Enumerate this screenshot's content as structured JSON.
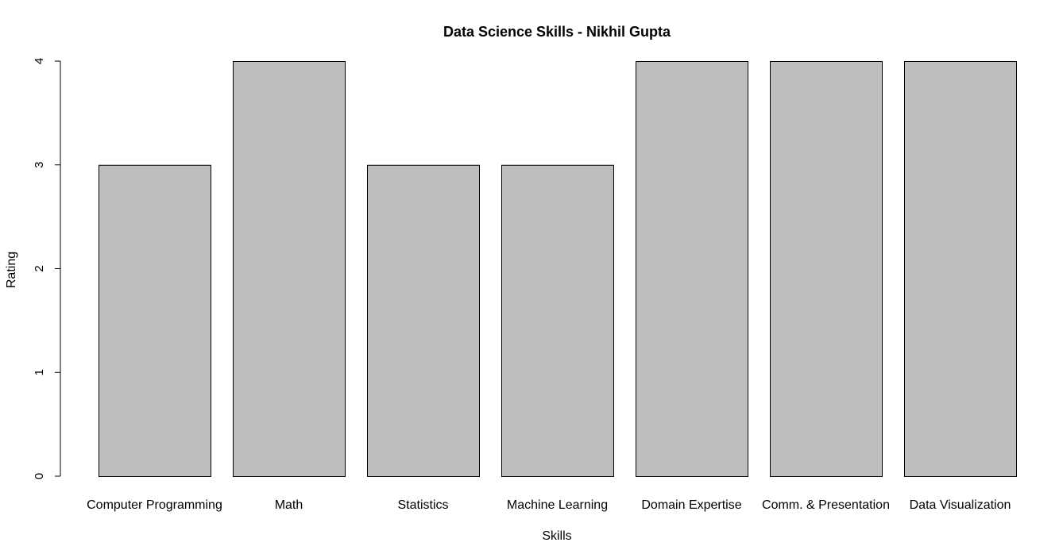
{
  "chart_data": {
    "type": "bar",
    "title": "Data Science Skills - Nikhil Gupta",
    "xlabel": "Skills",
    "ylabel": "Rating",
    "categories": [
      "Computer Programming",
      "Math",
      "Statistics",
      "Machine Learning",
      "Domain Expertise",
      "Comm. & Presentation",
      "Data Visualization"
    ],
    "values": [
      3,
      4,
      3,
      3,
      4,
      4,
      4
    ],
    "ylim": [
      0,
      4
    ],
    "yticks": [
      "0",
      "1",
      "2",
      "3",
      "4"
    ],
    "bar_color": "#bebebe",
    "grid": false,
    "legend": "none"
  }
}
